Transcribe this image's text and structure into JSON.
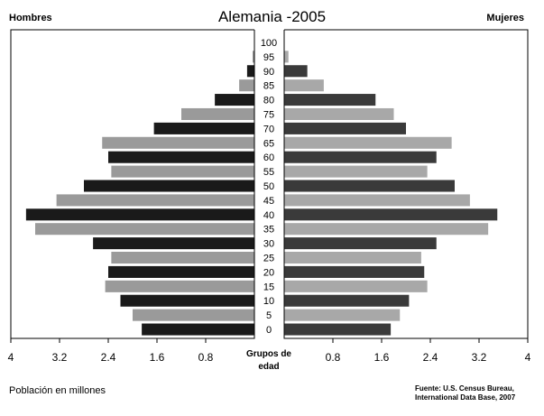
{
  "chart_data": {
    "type": "bar",
    "orientation": "horizontal-pyramid",
    "title": "Alemania -2005",
    "left_label": "Hombres",
    "right_label": "Mujeres",
    "center_label": "Grupos de edad",
    "xlabel": "Población en millones",
    "source": "Fuente: U.S. Census Bureau, International Data Base, 2007",
    "categories": [
      "0",
      "5",
      "10",
      "15",
      "20",
      "25",
      "30",
      "35",
      "40",
      "45",
      "50",
      "55",
      "60",
      "65",
      "70",
      "75",
      "80",
      "85",
      "90",
      "95",
      "100"
    ],
    "series": [
      {
        "name": "Hombres",
        "values": [
          1.85,
          2.0,
          2.2,
          2.45,
          2.4,
          2.35,
          2.65,
          3.6,
          3.75,
          3.25,
          2.8,
          2.35,
          2.4,
          2.5,
          1.65,
          1.2,
          0.65,
          0.25,
          0.12,
          0.03,
          0.0
        ]
      },
      {
        "name": "Mujeres",
        "values": [
          1.75,
          1.9,
          2.05,
          2.35,
          2.3,
          2.25,
          2.5,
          3.35,
          3.5,
          3.05,
          2.8,
          2.35,
          2.5,
          2.75,
          2.0,
          1.8,
          1.5,
          0.65,
          0.38,
          0.07,
          0.0
        ]
      }
    ],
    "xticks_left": [
      "4",
      "3.2",
      "2.4",
      "1.6",
      "0.8"
    ],
    "xticks_right": [
      "0.8",
      "1.6",
      "2.4",
      "3.2",
      "4"
    ],
    "xlim": [
      0,
      4
    ],
    "colors": {
      "dark": "#1a1a1a",
      "light": "#9a9a9a",
      "right_dark": "#3a3a3a",
      "right_light": "#a8a8a8",
      "axis": "#000000"
    }
  }
}
